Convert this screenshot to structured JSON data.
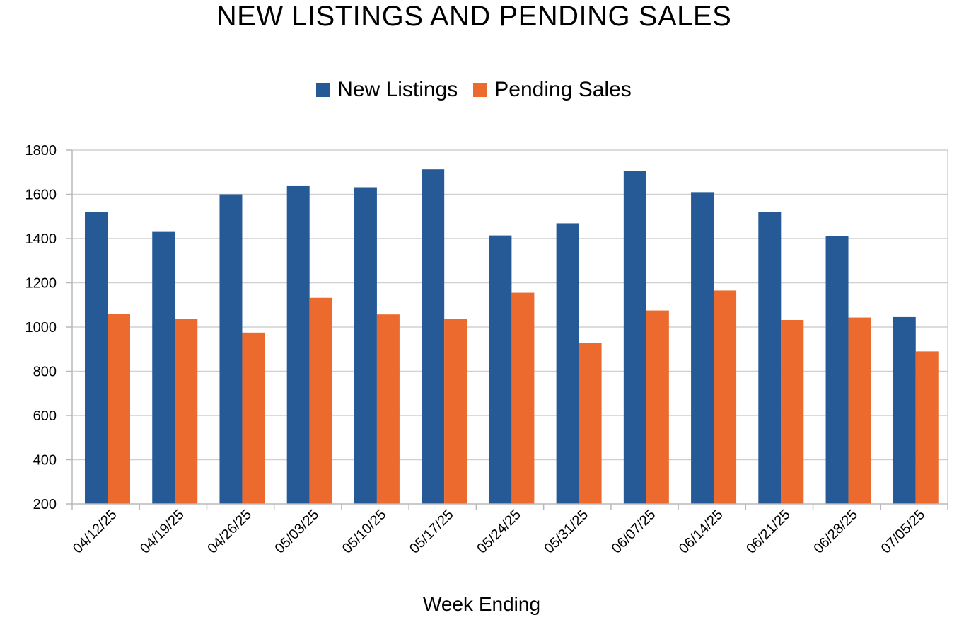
{
  "chart_data": {
    "type": "bar",
    "title": "NEW LISTINGS AND PENDING SALES",
    "xlabel": "Week Ending",
    "ylabel": "",
    "ylim": [
      200,
      1800
    ],
    "yticks": [
      200,
      400,
      600,
      800,
      1000,
      1200,
      1400,
      1600,
      1800
    ],
    "grid": true,
    "legend_position": "top",
    "categories": [
      "04/12/25",
      "04/19/25",
      "04/26/25",
      "05/03/25",
      "05/10/25",
      "05/17/25",
      "05/24/25",
      "05/31/25",
      "06/07/25",
      "06/14/25",
      "06/21/25",
      "06/28/25",
      "07/05/25"
    ],
    "series": [
      {
        "name": "New Listings",
        "color": "#255A96",
        "values": [
          1520,
          1430,
          1600,
          1637,
          1632,
          1713,
          1414,
          1469,
          1707,
          1610,
          1520,
          1412,
          1045
        ]
      },
      {
        "name": "Pending Sales",
        "color": "#EC6A2E",
        "values": [
          1060,
          1037,
          975,
          1132,
          1057,
          1037,
          1155,
          928,
          1075,
          1165,
          1032,
          1043,
          890
        ]
      }
    ]
  }
}
